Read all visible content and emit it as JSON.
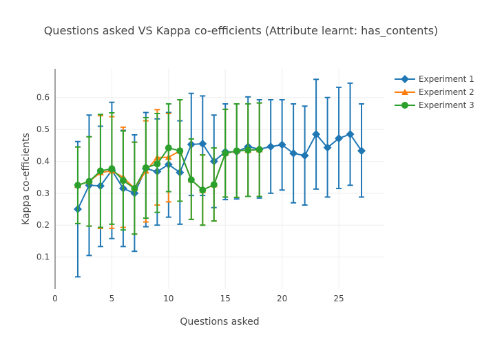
{
  "chart_data": {
    "type": "line",
    "title": "Questions asked VS Kappa co-efficients (Attribute learnt: has_contents)",
    "xlabel": "Questions asked",
    "ylabel": "Kappa co-efficients",
    "xlim": [
      0,
      29
    ],
    "ylim": [
      0,
      0.69
    ],
    "x_ticks": [
      0,
      5,
      10,
      15,
      20,
      25
    ],
    "y_ticks": [
      0.1,
      0.2,
      0.3,
      0.4,
      0.5,
      0.6
    ],
    "x_tick_labels": [
      "0",
      "5",
      "10",
      "15",
      "20",
      "25"
    ],
    "y_tick_labels": [
      "0.1",
      "0.2",
      "0.3",
      "0.4",
      "0.5",
      "0.6"
    ],
    "grid": true,
    "legend_position": "top-right",
    "series": [
      {
        "name": "Experiment 1",
        "color": "#1f77b4",
        "marker": "diamond",
        "x": [
          2,
          3,
          4,
          5,
          6,
          7,
          8,
          9,
          10,
          11,
          12,
          13,
          14,
          15,
          16,
          17,
          18,
          19,
          20,
          21,
          22,
          23,
          24,
          25,
          26,
          27
        ],
        "y": [
          0.25,
          0.325,
          0.323,
          0.372,
          0.315,
          0.3,
          0.377,
          0.368,
          0.39,
          0.365,
          0.453,
          0.455,
          0.4,
          0.43,
          0.43,
          0.446,
          0.438,
          0.446,
          0.452,
          0.425,
          0.418,
          0.485,
          0.443,
          0.472,
          0.485,
          0.433
        ],
        "err_low": [
          0.038,
          0.105,
          0.133,
          0.158,
          0.133,
          0.118,
          0.195,
          0.2,
          0.225,
          0.203,
          0.293,
          0.293,
          0.255,
          0.28,
          0.282,
          0.29,
          0.285,
          0.3,
          0.31,
          0.27,
          0.263,
          0.313,
          0.288,
          0.315,
          0.325,
          0.288
        ],
        "err_high": [
          0.462,
          0.545,
          0.51,
          0.585,
          0.497,
          0.483,
          0.553,
          0.533,
          0.553,
          0.527,
          0.613,
          0.605,
          0.545,
          0.58,
          0.58,
          0.602,
          0.593,
          0.593,
          0.593,
          0.58,
          0.573,
          0.657,
          0.6,
          0.632,
          0.645,
          0.58
        ]
      },
      {
        "name": "Experiment 2",
        "color": "#ff7f0e",
        "marker": "triangle-up",
        "x": [
          2,
          3,
          4,
          5,
          6,
          7,
          8,
          9,
          10,
          11,
          12,
          13,
          14,
          15,
          16,
          17,
          18
        ],
        "y": [
          0.325,
          0.337,
          0.365,
          0.37,
          0.35,
          0.315,
          0.37,
          0.412,
          0.413,
          0.433,
          0.342,
          0.31,
          0.327,
          0.425,
          0.433,
          0.435,
          0.437
        ],
        "err_low": [
          0.205,
          0.197,
          0.19,
          0.19,
          0.193,
          0.172,
          0.21,
          0.263,
          0.273,
          0.275,
          0.218,
          0.2,
          0.213,
          0.288,
          0.287,
          0.29,
          0.29
        ],
        "err_high": [
          0.445,
          0.477,
          0.543,
          0.54,
          0.507,
          0.46,
          0.527,
          0.562,
          0.55,
          0.593,
          0.47,
          0.42,
          0.442,
          0.563,
          0.58,
          0.58,
          0.583
        ]
      },
      {
        "name": "Experiment 3",
        "color": "#2ca02c",
        "marker": "circle",
        "x": [
          2,
          3,
          4,
          5,
          6,
          7,
          8,
          9,
          10,
          11,
          12,
          13,
          14,
          15,
          16,
          17,
          18
        ],
        "y": [
          0.325,
          0.337,
          0.37,
          0.377,
          0.34,
          0.315,
          0.38,
          0.392,
          0.442,
          0.433,
          0.342,
          0.31,
          0.327,
          0.425,
          0.433,
          0.435,
          0.437
        ],
        "err_low": [
          0.205,
          0.197,
          0.193,
          0.203,
          0.185,
          0.172,
          0.222,
          0.24,
          0.305,
          0.275,
          0.218,
          0.2,
          0.213,
          0.288,
          0.287,
          0.29,
          0.29
        ],
        "err_high": [
          0.445,
          0.477,
          0.547,
          0.552,
          0.495,
          0.46,
          0.537,
          0.55,
          0.58,
          0.593,
          0.47,
          0.42,
          0.442,
          0.563,
          0.58,
          0.58,
          0.583
        ]
      }
    ]
  }
}
